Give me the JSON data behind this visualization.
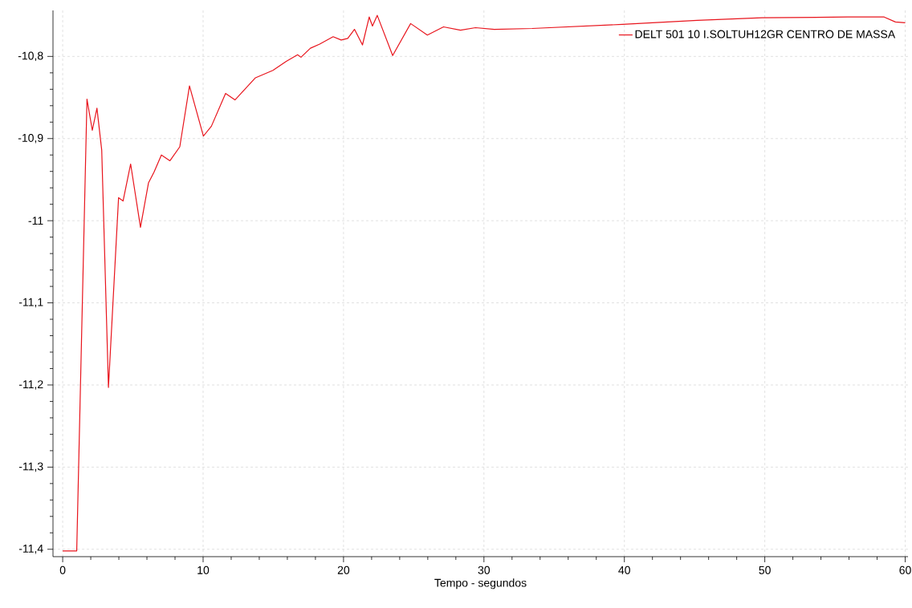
{
  "chart_data": {
    "type": "line",
    "xlabel": "Tempo - segundos",
    "x": [
      0,
      1.0,
      1.73,
      2.11,
      2.44,
      2.78,
      3.26,
      3.98,
      4.3,
      4.84,
      5.54,
      6.11,
      6.5,
      7.03,
      7.64,
      8.34,
      9.03,
      10.02,
      10.59,
      11.6,
      12.27,
      13.73,
      14.97,
      15.92,
      16.73,
      16.97,
      17.64,
      18.3,
      19.26,
      19.83,
      20.3,
      20.78,
      21.35,
      21.83,
      22.06,
      22.4,
      23.5,
      24.78,
      25.97,
      27.12,
      28.33,
      29.4,
      30.74,
      33.43,
      39.86,
      45.2,
      49.8,
      55.9,
      58.5,
      59.3,
      60
    ],
    "series": [
      {
        "name": "DELT      501 10 I.SOLTUH12GR          CENTRO DE MASSA",
        "color": "#e8141c",
        "values": [
          -11.402,
          -11.402,
          -10.852,
          -10.89,
          -10.863,
          -10.914,
          -11.203,
          -10.972,
          -10.976,
          -10.931,
          -11.008,
          -10.954,
          -10.941,
          -10.92,
          -10.927,
          -10.91,
          -10.836,
          -10.897,
          -10.885,
          -10.845,
          -10.853,
          -10.826,
          -10.817,
          -10.806,
          -10.798,
          -10.801,
          -10.79,
          -10.785,
          -10.776,
          -10.78,
          -10.778,
          -10.767,
          -10.786,
          -10.752,
          -10.763,
          -10.75,
          -10.799,
          -10.76,
          -10.774,
          -10.764,
          -10.768,
          -10.765,
          -10.767,
          -10.766,
          -10.761,
          -10.756,
          -10.753,
          -10.752,
          -10.752,
          -10.758,
          -10.759
        ]
      }
    ],
    "xlim": [
      -0.69,
      60.2
    ],
    "ylim": [
      -11.409,
      -10.744
    ],
    "xticks": [
      0,
      10,
      20,
      30,
      40,
      50,
      60
    ],
    "yticks": [
      {
        "value": -10.8,
        "label": "-10,8"
      },
      {
        "value": -10.9,
        "label": "-10,9"
      },
      {
        "value": -11,
        "label": "-11"
      },
      {
        "value": -11.1,
        "label": "-11,1"
      },
      {
        "value": -11.2,
        "label": "-11,2"
      },
      {
        "value": -11.3,
        "label": "-11,3"
      },
      {
        "value": -11.4,
        "label": "-11,4"
      }
    ],
    "grid": true,
    "legend": "top right",
    "marker": "none",
    "line_style": "solid"
  }
}
